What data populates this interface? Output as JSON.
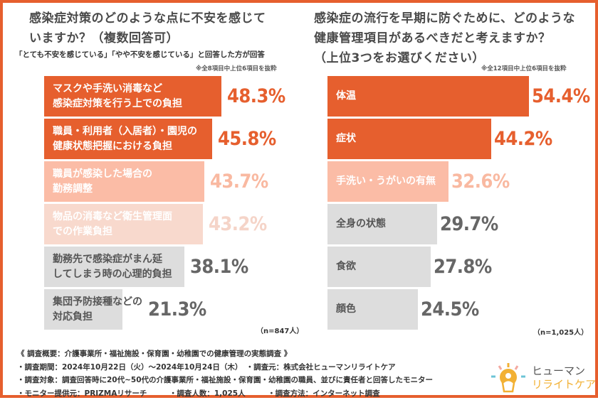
{
  "colors": {
    "accent": "#e65f2e",
    "tier2_bg": "#fbbca6",
    "tier2_text": "#f9b9a1",
    "tier3_bg": "#f8d9cd",
    "tier3_text": "#f5d4c8",
    "gray_bg": "#dddddd",
    "gray_text": "#666666"
  },
  "chart_data": [
    {
      "type": "bar",
      "orientation": "horizontal",
      "title": "感染症対策のどのような点に不安を感じていますか？（複数回答可）",
      "title_lines": [
        "感染症対策のどのような点に不安を感じて",
        "いますか？（複数回答可）"
      ],
      "subtitle": "「とても不安を感じている」「やや不安を感じている」と回答した方が回答",
      "note": "※全8項目中上位6項目を抜粋",
      "sample": "（n=847人）",
      "unit": "%",
      "categories": [
        "マスクや手洗い消毒など感染症対策を行う上での負担",
        "職員・利用者（入居者）・園児の健康状態把握における負担",
        "職員が感染した場合の勤務調整",
        "物品の消毒など衛生管理面での作業負担",
        "勤務先で感染症がまん延してしまう時の心理的負担",
        "集団予防接種などの対応負担"
      ],
      "label_lines": [
        [
          "マスクや手洗い消毒など",
          "感染症対策を行う上での負担"
        ],
        [
          "職員・利用者（入居者）・園児の",
          "健康状態把握における負担"
        ],
        [
          "職員が感染した場合の",
          "勤務調整"
        ],
        [
          "物品の消毒など衛生管理面",
          "での作業負担"
        ],
        [
          "勤務先で感染症がまん延",
          "してしまう時の心理的負担"
        ],
        [
          "集団予防接種などの",
          "対応負担"
        ]
      ],
      "values": [
        48.3,
        45.8,
        43.7,
        43.2,
        38.1,
        21.3
      ],
      "value_labels": [
        "48.3%",
        "45.8%",
        "43.7%",
        "43.2%",
        "38.1%",
        "21.3%"
      ],
      "tiers": [
        "accent",
        "accent",
        "tier2",
        "tier3",
        "gray",
        "gray"
      ]
    },
    {
      "type": "bar",
      "orientation": "horizontal",
      "title": "感染症の流行を早期に防ぐために、どのような健康管理項目があるべきだと考えますか？（上位3つをお選びください）",
      "title_lines": [
        "感染症の流行を早期に防ぐために、どのような",
        "健康管理項目があるべきだと考えますか？",
        "（上位3つをお選びください）"
      ],
      "note": "※全12項目中上位6項目を抜粋",
      "sample": "（n=1,025人）",
      "unit": "%",
      "categories": [
        "体温",
        "症状",
        "手洗い・うがいの有無",
        "全身の状態",
        "食欲",
        "顔色"
      ],
      "label_lines": [
        [
          "体温"
        ],
        [
          "症状"
        ],
        [
          "手洗い・うがいの有無"
        ],
        [
          "全身の状態"
        ],
        [
          "食欲"
        ],
        [
          "顔色"
        ]
      ],
      "values": [
        54.4,
        44.2,
        32.6,
        29.7,
        27.8,
        24.5
      ],
      "value_labels": [
        "54.4%",
        "44.2%",
        "32.6%",
        "29.7%",
        "27.8%",
        "24.5%"
      ],
      "tiers": [
        "accent",
        "accent",
        "tier2",
        "gray",
        "gray",
        "gray"
      ]
    }
  ],
  "footer": {
    "lines": [
      "《 調査概要：介護事業所・福祉施設・保育園・幼稚園での健康管理の実態調査 》",
      "・調査期間：2024年10月22日（火）～2024年10月24日（木）　・調査元：株式会社ヒューマンリライトケア",
      "・調査対象：調査回答時に20代~50代の介護事業所・福祉施設・保育園・幼稚園の職員、並びに責任者と回答したモニター",
      "・モニター提供元：PRIZMAリサーチ　　　・調査人数：1,025人　　　・調査方法：インターネット調査"
    ]
  },
  "logo": {
    "line1": "ヒューマン",
    "line2": "リライトケア",
    "icon": "lightbulb-person-icon"
  }
}
